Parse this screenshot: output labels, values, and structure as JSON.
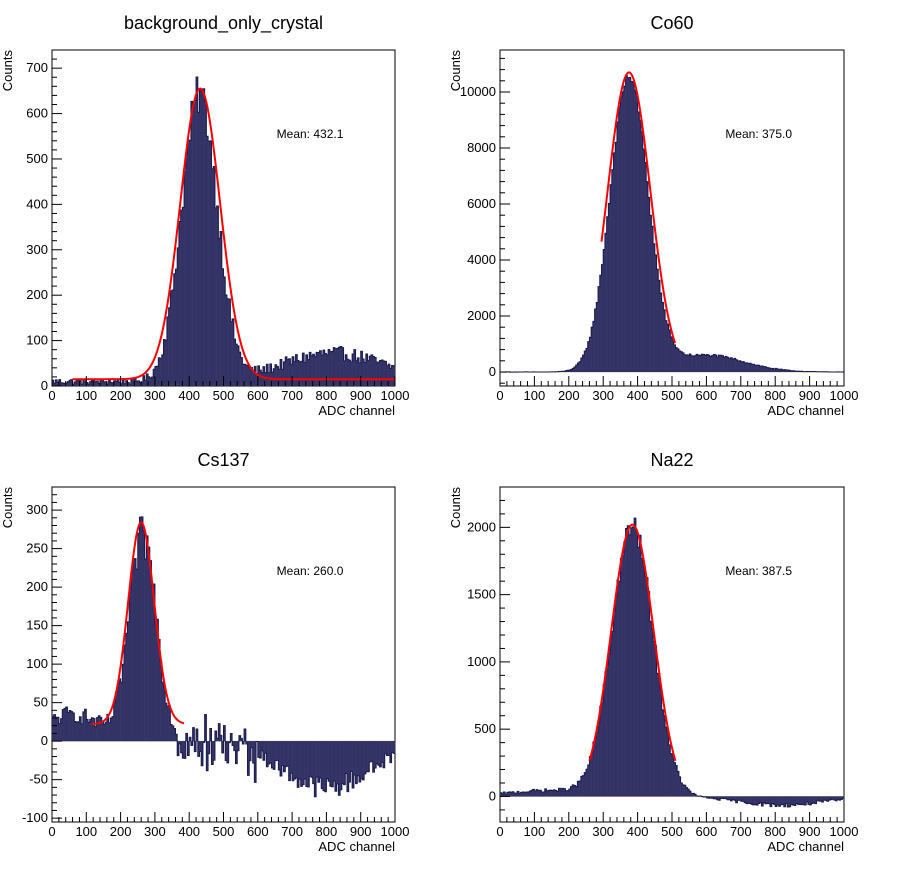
{
  "chart_data": [
    {
      "type": "histogram",
      "title": "background_only_crystal",
      "xlabel": "ADC channel",
      "ylabel": "Counts",
      "xlim": [
        0,
        1000
      ],
      "ylim": [
        0,
        740
      ],
      "yticks": [
        0,
        100,
        200,
        300,
        400,
        500,
        600,
        700
      ],
      "stat_label": "Mean: 432.1",
      "colors": {
        "fill": "#333366",
        "edge": "#1a1a4d",
        "fit": "#ff0000"
      },
      "hist": {
        "bin_width": 5,
        "components": [
          {
            "kind": "gauss",
            "amp": 630,
            "mean": 430,
            "sigma": 52
          },
          {
            "kind": "gauss",
            "amp": 62,
            "mean": 820,
            "sigma": 150
          },
          {
            "kind": "const",
            "value": 10
          }
        ]
      },
      "series": [
        {
          "kind": "fit",
          "range": [
            60,
            1000
          ],
          "components": [
            {
              "kind": "gauss",
              "amp": 640,
              "mean": 432,
              "sigma": 58
            },
            {
              "kind": "const",
              "value": 15
            }
          ]
        }
      ]
    },
    {
      "type": "histogram",
      "title": "Co60",
      "xlabel": "ADC channel",
      "ylabel": "Counts",
      "xlim": [
        0,
        1000
      ],
      "ylim": [
        -500,
        11500
      ],
      "yticks": [
        0,
        2000,
        4000,
        6000,
        8000,
        10000
      ],
      "stat_label": "Mean: 375.0",
      "colors": {
        "fill": "#333366",
        "edge": "#1a1a4d",
        "fit": "#ff0000"
      },
      "hist": {
        "bin_width": 5,
        "components": [
          {
            "kind": "gauss",
            "amp": 10500,
            "mean": 375,
            "sigma": 55
          },
          {
            "kind": "gauss",
            "amp": 600,
            "mean": 600,
            "sigma": 110
          }
        ]
      },
      "series": [
        {
          "kind": "fit",
          "range": [
            295,
            510
          ],
          "components": [
            {
              "kind": "gauss",
              "amp": 10700,
              "mean": 375,
              "sigma": 62
            }
          ]
        }
      ]
    },
    {
      "type": "histogram",
      "title": "Cs137",
      "xlabel": "ADC channel",
      "ylabel": "Counts",
      "xlim": [
        0,
        1000
      ],
      "ylim": [
        -105,
        330
      ],
      "yticks": [
        -100,
        -50,
        0,
        50,
        100,
        150,
        200,
        250,
        300
      ],
      "stat_label": "Mean: 260.0",
      "colors": {
        "fill": "#333366",
        "edge": "#1a1a4d",
        "fit": "#ff0000"
      },
      "hist": {
        "bin_width": 5,
        "components": [
          {
            "kind": "gauss",
            "amp": 265,
            "mean": 265,
            "sigma": 40
          },
          {
            "kind": "gauss",
            "amp": 35,
            "mean": 60,
            "sigma": 80
          },
          {
            "kind": "gauss",
            "amp": -60,
            "mean": 800,
            "sigma": 130
          },
          {
            "kind": "noise",
            "amp": 30,
            "from": 360,
            "to": 600
          }
        ]
      },
      "series": [
        {
          "kind": "fit",
          "range": [
            115,
            385
          ],
          "components": [
            {
              "kind": "gauss",
              "amp": 262,
              "mean": 260,
              "sigma": 38
            },
            {
              "kind": "const",
              "value": 22
            }
          ]
        }
      ]
    },
    {
      "type": "histogram",
      "title": "Na22",
      "xlabel": "ADC channel",
      "ylabel": "Counts",
      "xlim": [
        0,
        1000
      ],
      "ylim": [
        -190,
        2300
      ],
      "yticks": [
        0,
        500,
        1000,
        1500,
        2000
      ],
      "stat_label": "Mean: 387.5",
      "colors": {
        "fill": "#333366",
        "edge": "#1a1a4d",
        "fit": "#ff0000"
      },
      "hist": {
        "bin_width": 5,
        "components": [
          {
            "kind": "gauss",
            "amp": 2000,
            "mean": 385,
            "sigma": 60
          },
          {
            "kind": "gauss",
            "amp": 45,
            "mean": 150,
            "sigma": 120
          },
          {
            "kind": "gauss",
            "amp": -65,
            "mean": 820,
            "sigma": 120
          }
        ]
      },
      "series": [
        {
          "kind": "fit",
          "range": [
            260,
            510
          ],
          "components": [
            {
              "kind": "gauss",
              "amp": 2020,
              "mean": 385,
              "sigma": 62
            }
          ]
        }
      ]
    }
  ]
}
